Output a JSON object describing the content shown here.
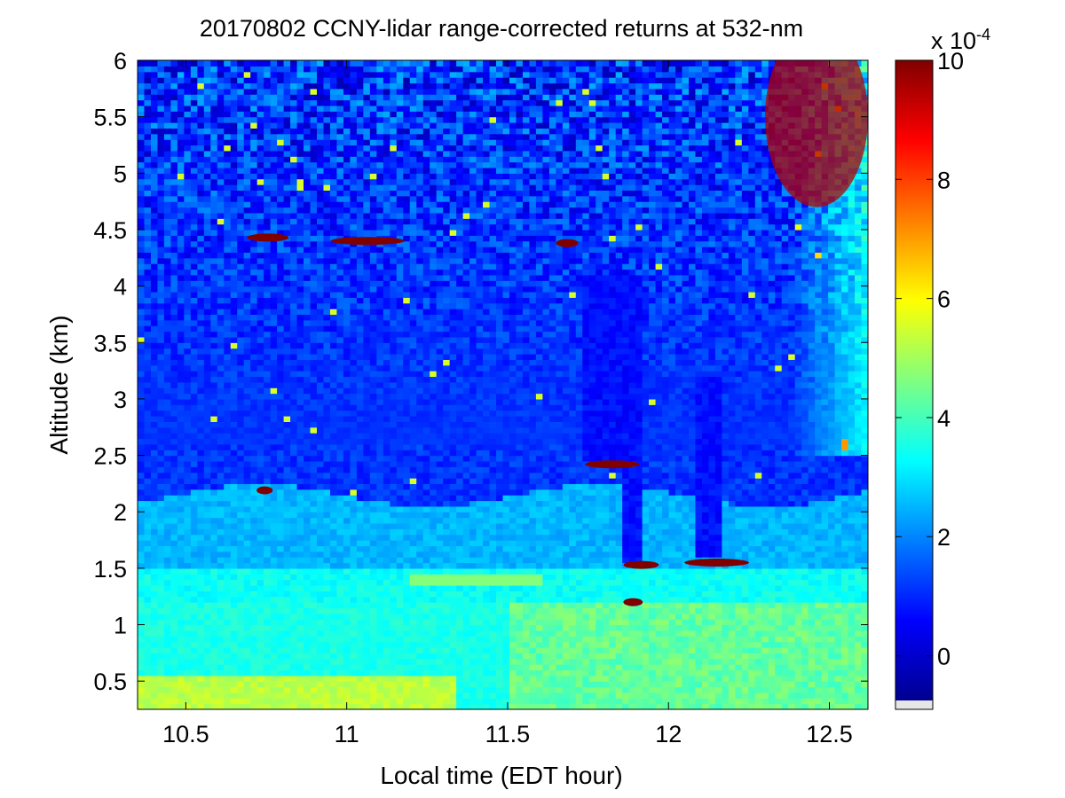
{
  "chart_data": {
    "type": "heatmap",
    "title": "20170802 CCNY-lidar range-corrected returns at 532-nm",
    "xlabel": "Local time (EDT hour)",
    "ylabel": "Altitude (km)",
    "xlim": [
      10.35,
      12.62
    ],
    "ylim": [
      0.25,
      6.0
    ],
    "xticks": [
      10.5,
      11,
      11.5,
      12,
      12.5
    ],
    "xtick_labels": [
      "10.5",
      "11",
      "11.5",
      "12",
      "12.5"
    ],
    "yticks": [
      0.5,
      1,
      1.5,
      2,
      2.5,
      3,
      3.5,
      4,
      4.5,
      5,
      5.5,
      6
    ],
    "ytick_labels": [
      "0.5",
      "1",
      "1.5",
      "2",
      "2.5",
      "3",
      "3.5",
      "4",
      "4.5",
      "5",
      "5.5",
      "6"
    ],
    "colormap": "jet",
    "colorbar": {
      "clim": [
        -9e-05,
        0.001
      ],
      "ticks": [
        0,
        2,
        4,
        6,
        8,
        10
      ],
      "tick_labels": [
        "0",
        "2",
        "4",
        "6",
        "8",
        "10"
      ],
      "multiplier_label": "x 10",
      "multiplier_exponent": "-4",
      "below_range_color": "#e6e6e6"
    },
    "layers": {
      "free_troposphere_level": 1.2,
      "residual_layer_top_km": 2.15,
      "mixed_layer_top_km": 1.5,
      "surface_layer_top_km": 0.55,
      "convective_boundary_layer_top_km": 1.2
    },
    "cloud_features": [
      {
        "x": [
          10.69,
          10.82
        ],
        "altitude_km": 4.43,
        "value": 10
      },
      {
        "x": [
          10.95,
          11.18
        ],
        "altitude_km": 4.4,
        "value": 10
      },
      {
        "x": [
          11.65,
          11.72
        ],
        "altitude_km": 4.38,
        "value": 10
      },
      {
        "x": [
          10.72,
          10.77
        ],
        "altitude_km": 2.19,
        "value": 10
      },
      {
        "x": [
          11.74,
          11.91
        ],
        "altitude_km": 2.42,
        "value": 10
      },
      {
        "x": [
          11.86,
          11.97
        ],
        "altitude_km": 1.53,
        "value": 10
      },
      {
        "x": [
          12.05,
          12.25
        ],
        "altitude_km": 1.55,
        "value": 10
      },
      {
        "x": [
          11.86,
          11.92
        ],
        "altitude_km": 1.2,
        "value": 10
      },
      {
        "x": [
          12.3,
          12.62
        ],
        "altitude_km": 5.5,
        "value": 10
      }
    ],
    "attenuated_columns": [
      {
        "x": [
          11.74,
          11.91
        ],
        "altitude_km": [
          2.45,
          4.1
        ]
      },
      {
        "x": [
          11.85,
          11.91
        ],
        "altitude_km": [
          1.55,
          2.4
        ]
      },
      {
        "x": [
          12.08,
          12.17
        ],
        "altitude_km": [
          1.62,
          3.2
        ]
      }
    ]
  }
}
